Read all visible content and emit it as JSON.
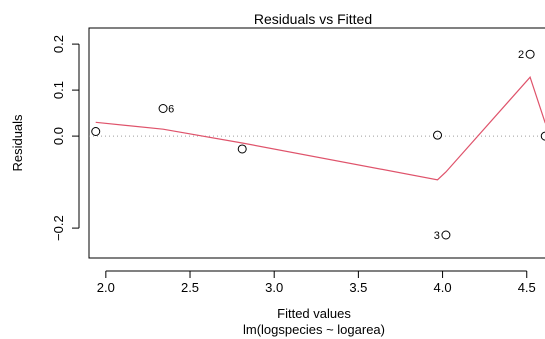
{
  "chart_data": {
    "type": "scatter",
    "title": "Residuals vs Fitted",
    "xlabel": "Fitted values",
    "subtitle": "lm(logspecies ~ logarea)",
    "ylabel": "Residuals",
    "xlim": [
      1.9,
      4.65
    ],
    "ylim": [
      -0.265,
      0.235
    ],
    "xticks": [
      {
        "value": 2.0,
        "label": "2.0"
      },
      {
        "value": 2.5,
        "label": "2.5"
      },
      {
        "value": 3.0,
        "label": "3.0"
      },
      {
        "value": 3.5,
        "label": "3.5"
      },
      {
        "value": 4.0,
        "label": "4.0"
      },
      {
        "value": 4.5,
        "label": "4.5"
      }
    ],
    "yticks": [
      {
        "value": -0.2,
        "label": "−0.2"
      },
      {
        "value": 0.0,
        "label": "0.0"
      },
      {
        "value": 0.1,
        "label": "0.1"
      },
      {
        "value": 0.2,
        "label": "0.2"
      }
    ],
    "points": [
      {
        "x": 1.94,
        "y": 0.01,
        "label": ""
      },
      {
        "x": 2.34,
        "y": 0.06,
        "label": "6"
      },
      {
        "x": 2.81,
        "y": -0.028,
        "label": ""
      },
      {
        "x": 3.97,
        "y": 0.002,
        "label": ""
      },
      {
        "x": 4.02,
        "y": -0.215,
        "label": "3"
      },
      {
        "x": 4.52,
        "y": 0.178,
        "label": "2"
      },
      {
        "x": 4.61,
        "y": 0.0,
        "label": ""
      }
    ],
    "smoother": [
      [
        1.94,
        0.03
      ],
      [
        2.34,
        0.015
      ],
      [
        2.81,
        -0.015
      ],
      [
        3.97,
        -0.095
      ],
      [
        4.02,
        -0.078
      ],
      [
        4.52,
        0.128
      ],
      [
        4.61,
        0.028
      ]
    ],
    "reference_line": 0,
    "colors": {
      "points": "#000000",
      "smoother": "#DF536B",
      "reference": "#9E9E9E",
      "frame": "#000000"
    }
  }
}
